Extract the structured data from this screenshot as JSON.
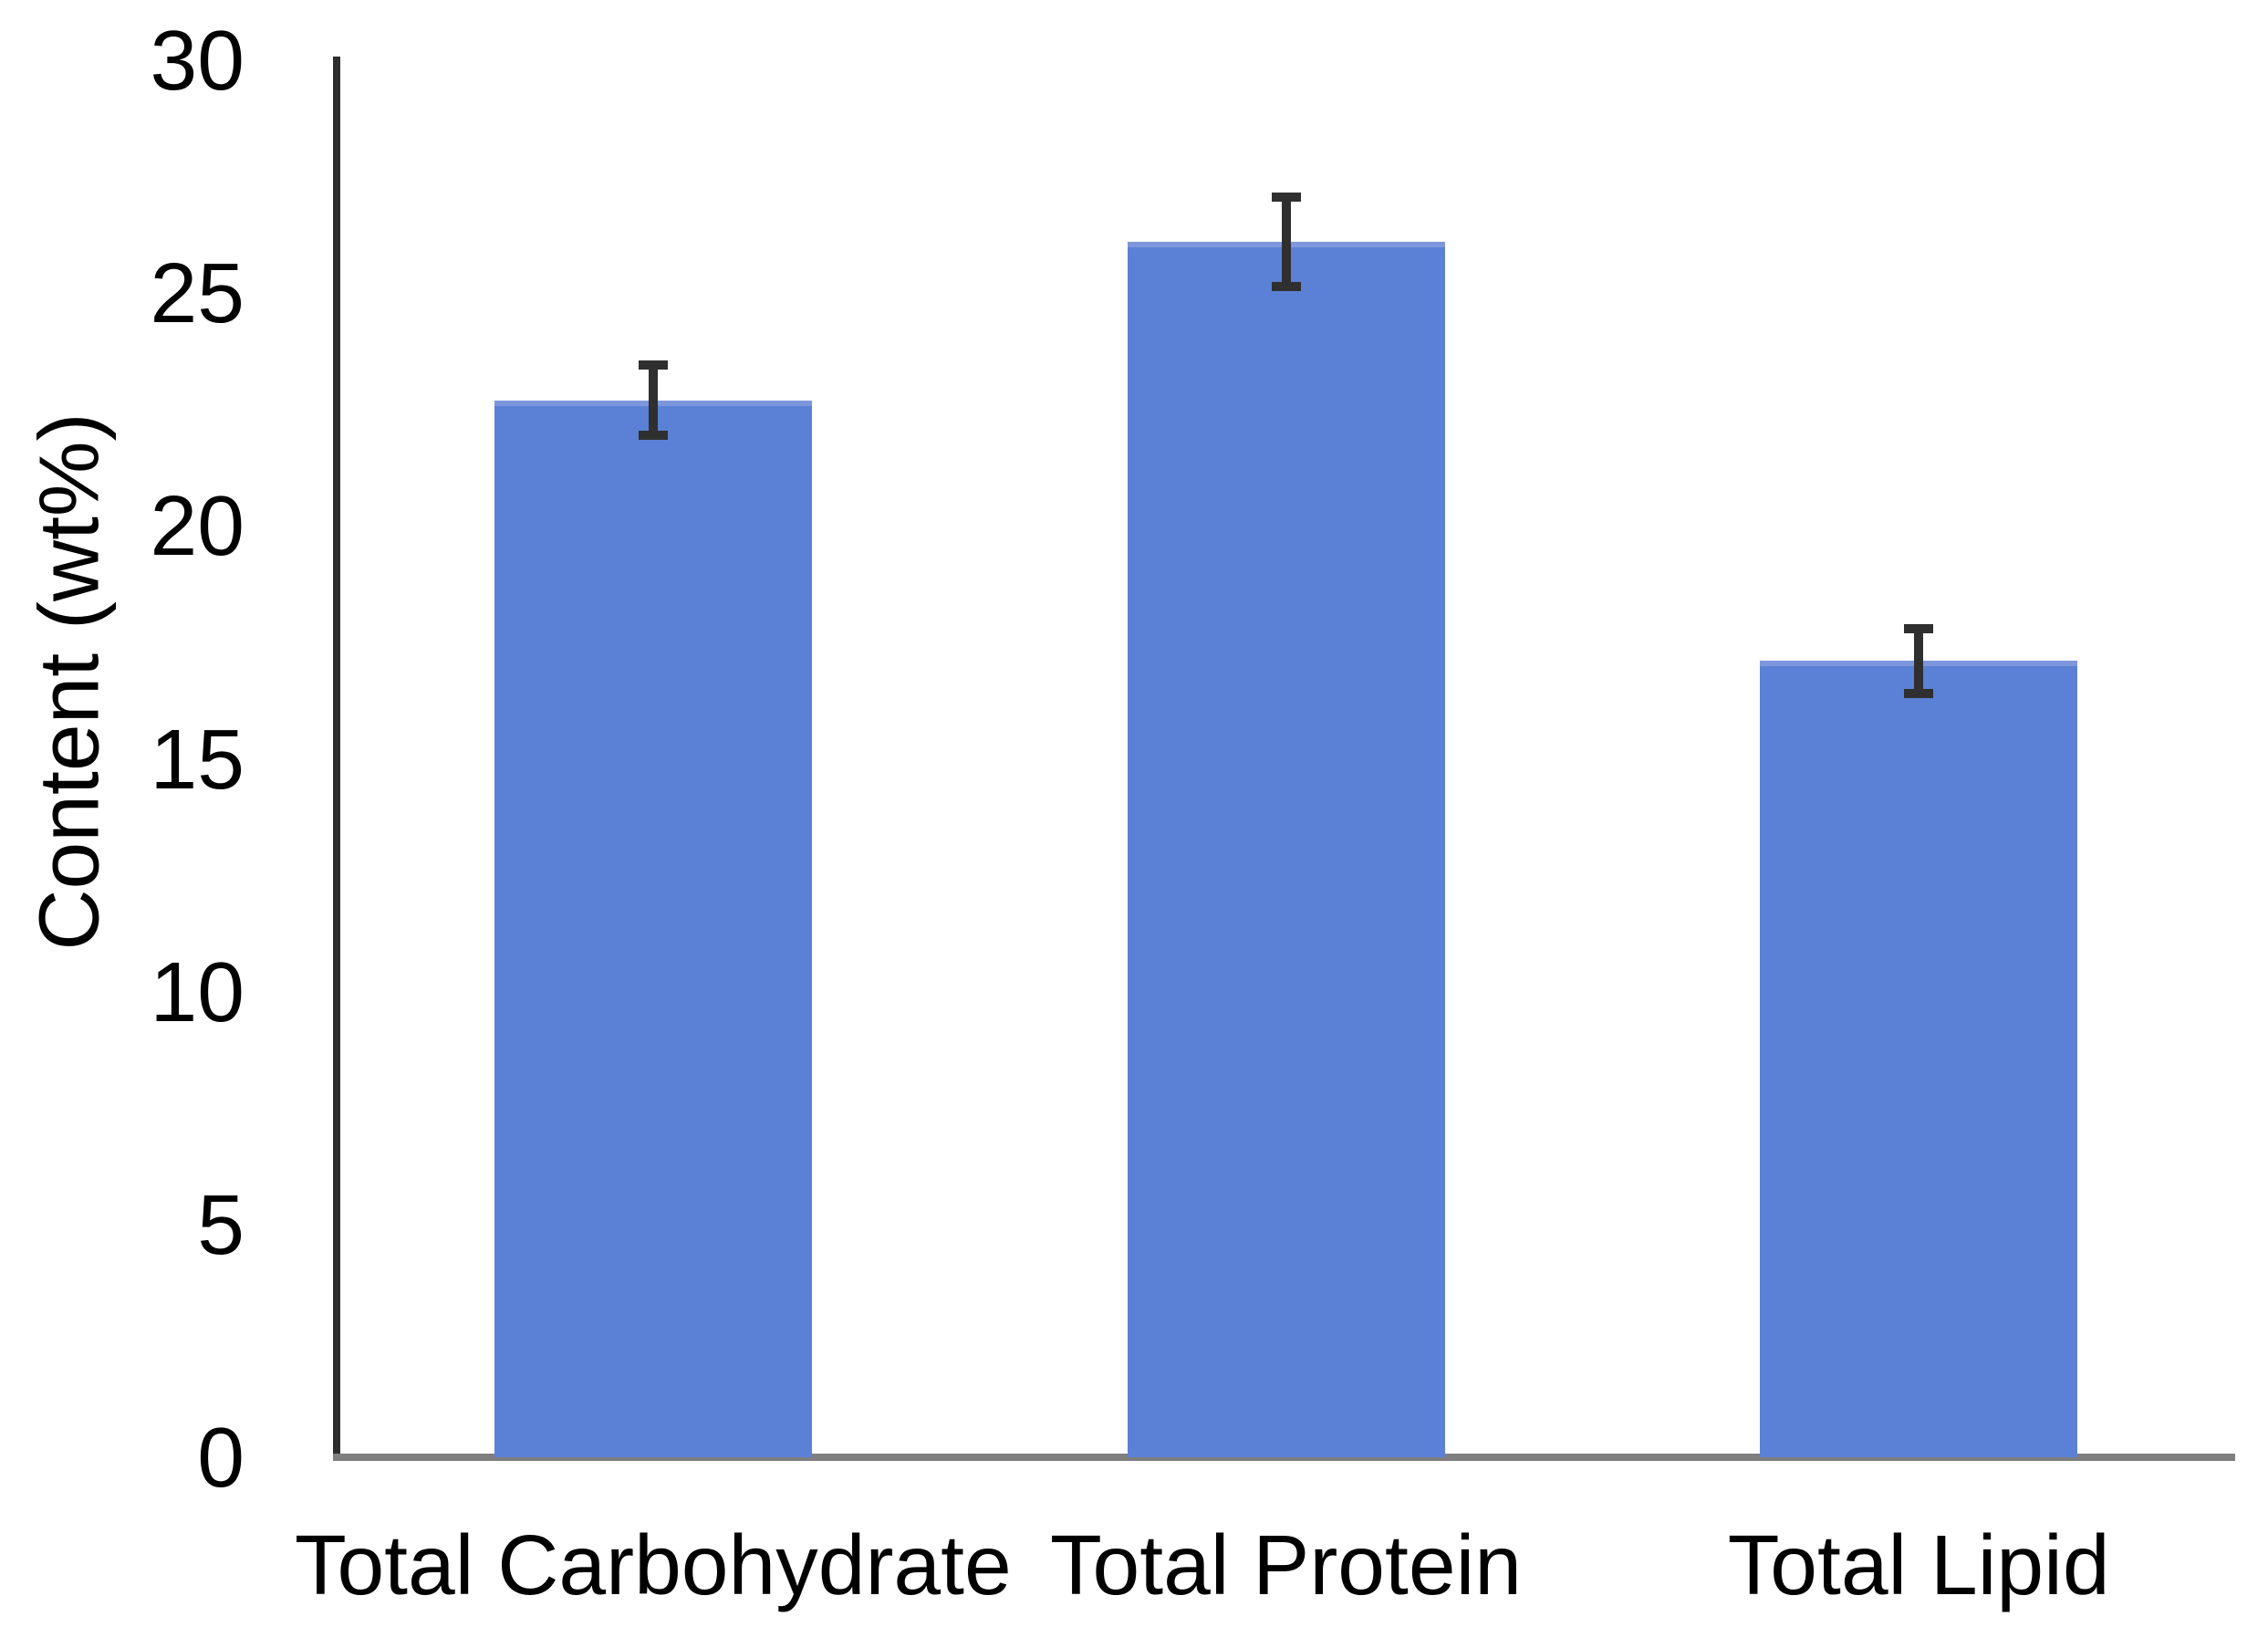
{
  "chart_data": {
    "type": "bar",
    "title": "",
    "categories": [
      "Total Carbohydrate",
      "Total Protein",
      "Total Lipid"
    ],
    "values": [
      22.7,
      26.1,
      17.1
    ],
    "error_bars": [
      0.85,
      1.05,
      0.8
    ],
    "xlabel": "",
    "ylabel": "Content (wt%)",
    "ylim": [
      0,
      30
    ],
    "ytick_step": 5,
    "y_tick_labels": [
      "30",
      "25",
      "20",
      "15",
      "10",
      "5",
      "0"
    ],
    "grid": false,
    "legend": false,
    "bar_color": "#5b81d6",
    "bar_top_edge_color": "#7e97dc",
    "error_bar_color": "#2f2f2f",
    "y_axis_line_color": "#2d2d2d",
    "x_axis_line_color": "#7f7f7f",
    "text_color": "#000000",
    "background_color": "#ffffff"
  }
}
